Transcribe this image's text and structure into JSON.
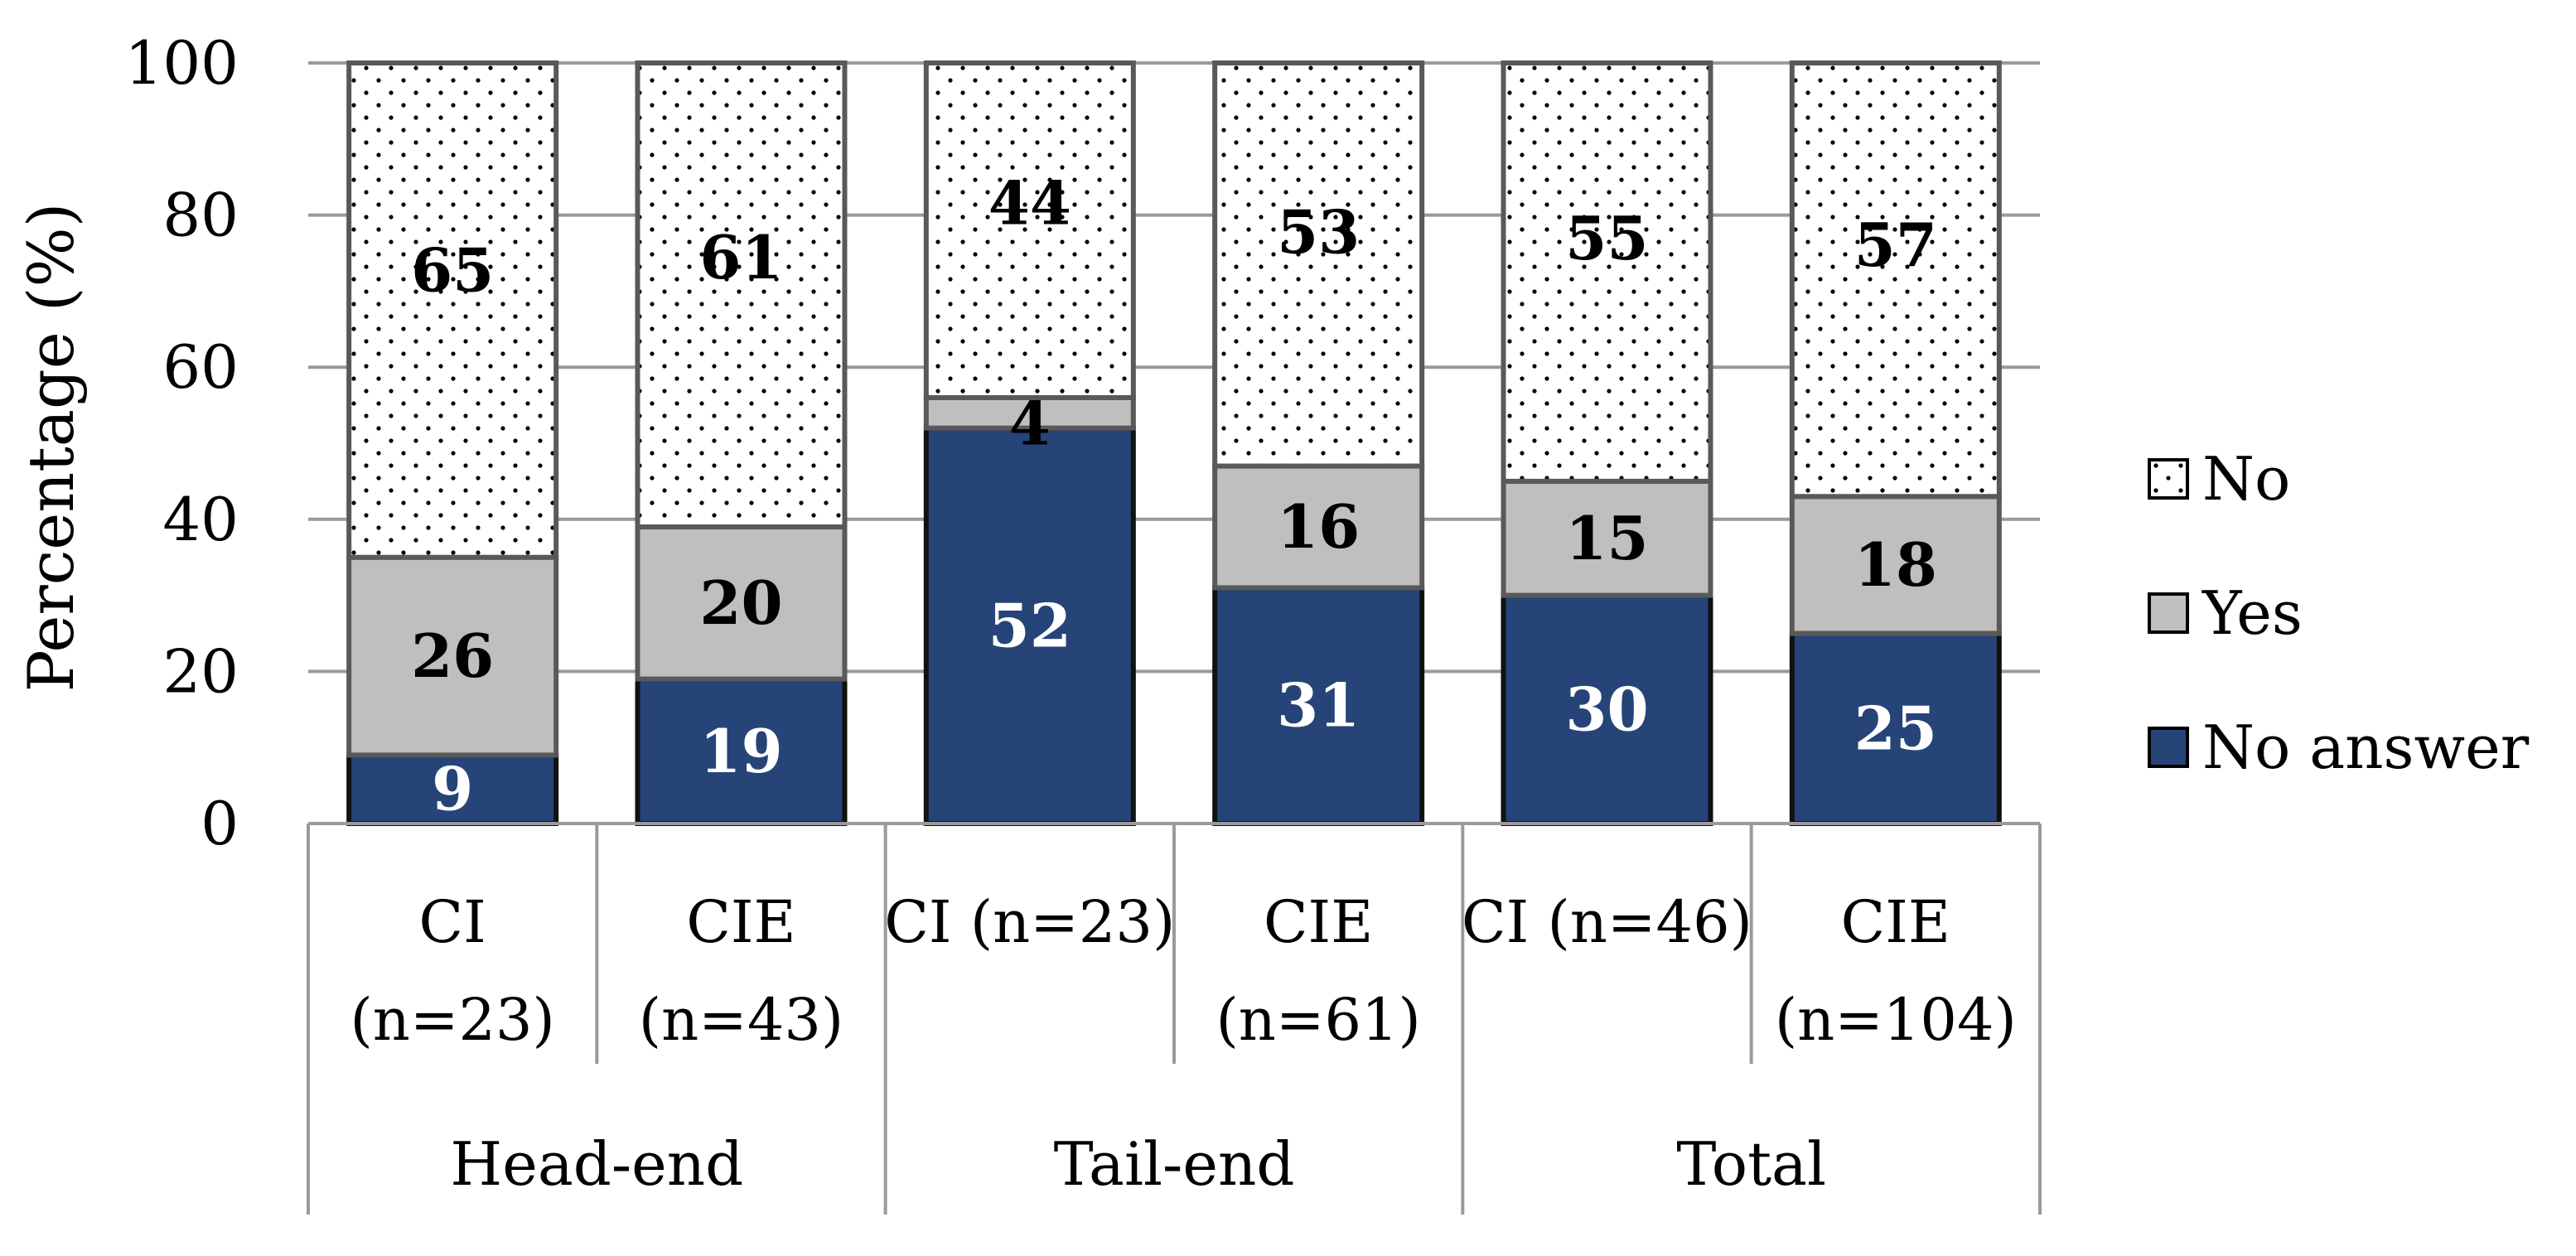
{
  "chart_data": {
    "type": "bar",
    "stacked": true,
    "ylabel": "Percentage (%)",
    "ylim": [
      0,
      100
    ],
    "yticks": [
      "0",
      "20",
      "40",
      "60",
      "80",
      "100"
    ],
    "grid": true,
    "legend_position": "right",
    "groups": [
      {
        "label": "Head-end",
        "categories": [
          0,
          1
        ]
      },
      {
        "label": "Tail-end",
        "categories": [
          2,
          3
        ]
      },
      {
        "label": "Total",
        "categories": [
          4,
          5
        ]
      }
    ],
    "categories": [
      [
        "CI",
        "(n=23)"
      ],
      [
        "CIE",
        "(n=43)"
      ],
      [
        "CI (n=23)"
      ],
      [
        "CIE",
        "(n=61)"
      ],
      [
        "CI (n=46)"
      ],
      [
        "CIE",
        "(n=104)"
      ]
    ],
    "series": [
      {
        "name": "No answer",
        "color": "#264478",
        "values": [
          9,
          19,
          52,
          31,
          30,
          25
        ]
      },
      {
        "name": "Yes",
        "color": "#bfbfbf",
        "values": [
          26,
          20,
          4,
          16,
          15,
          18
        ]
      },
      {
        "name": "No",
        "color": "#ffffff",
        "pattern": "dots",
        "values": [
          65,
          61,
          44,
          53,
          55,
          57
        ]
      }
    ],
    "legend_order": [
      "No",
      "Yes",
      "No answer"
    ]
  }
}
